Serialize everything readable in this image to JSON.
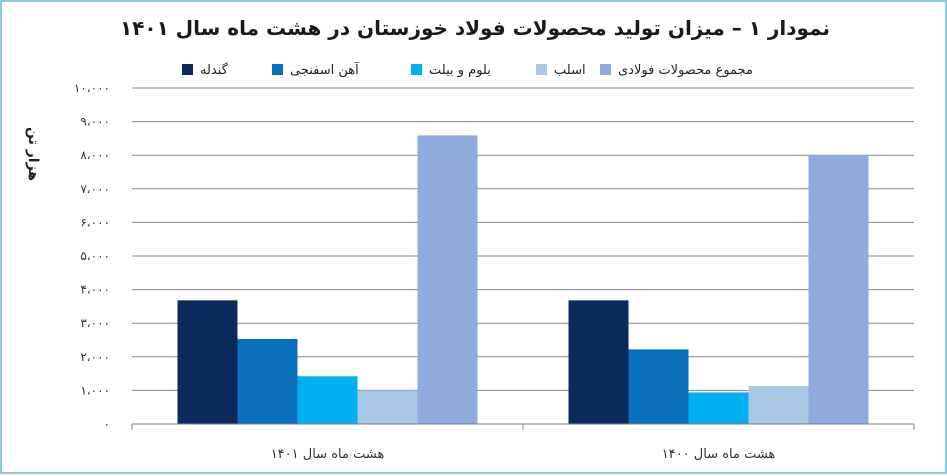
{
  "chart_data": {
    "type": "bar",
    "title": "نمودار ۱ – میزان تولید محصولات فولاد خوزستان در هشت ماه سال ۱۴۰۱",
    "ylabel": "هزار تن",
    "xlabel": "",
    "categories": [
      "هشت ماه سال ۱۴۰۱",
      "هشت ماه سال ۱۴۰۰"
    ],
    "ylim": [
      0,
      10000
    ],
    "yticks": [
      {
        "value": 0,
        "label": "۰"
      },
      {
        "value": 1000,
        "label": "۱،۰۰۰"
      },
      {
        "value": 2000,
        "label": "۲،۰۰۰"
      },
      {
        "value": 3000,
        "label": "۳،۰۰۰"
      },
      {
        "value": 4000,
        "label": "۴،۰۰۰"
      },
      {
        "value": 5000,
        "label": "۵،۰۰۰"
      },
      {
        "value": 6000,
        "label": "۶،۰۰۰"
      },
      {
        "value": 7000,
        "label": "۷،۰۰۰"
      },
      {
        "value": 8000,
        "label": "۸،۰۰۰"
      },
      {
        "value": 9000,
        "label": "۹،۰۰۰"
      },
      {
        "value": 10000,
        "label": "۱۰،۰۰۰"
      }
    ],
    "grid": true,
    "legend_position": "top",
    "series": [
      {
        "name": "گندله",
        "color": "#0d2a5e",
        "values": [
          3680,
          3680
        ]
      },
      {
        "name": "آهن اسفنجی",
        "color": "#0a6fbd",
        "values": [
          2530,
          2220
        ]
      },
      {
        "name": "بلوم و بیلت",
        "color": "#00b0f0",
        "values": [
          1420,
          940
        ]
      },
      {
        "name": "اسلب",
        "color": "#a9c7e6",
        "values": [
          990,
          1130
        ]
      },
      {
        "name": "مجموع محصولات فولادی",
        "color": "#8faadc",
        "values": [
          8590,
          8010
        ]
      }
    ]
  }
}
